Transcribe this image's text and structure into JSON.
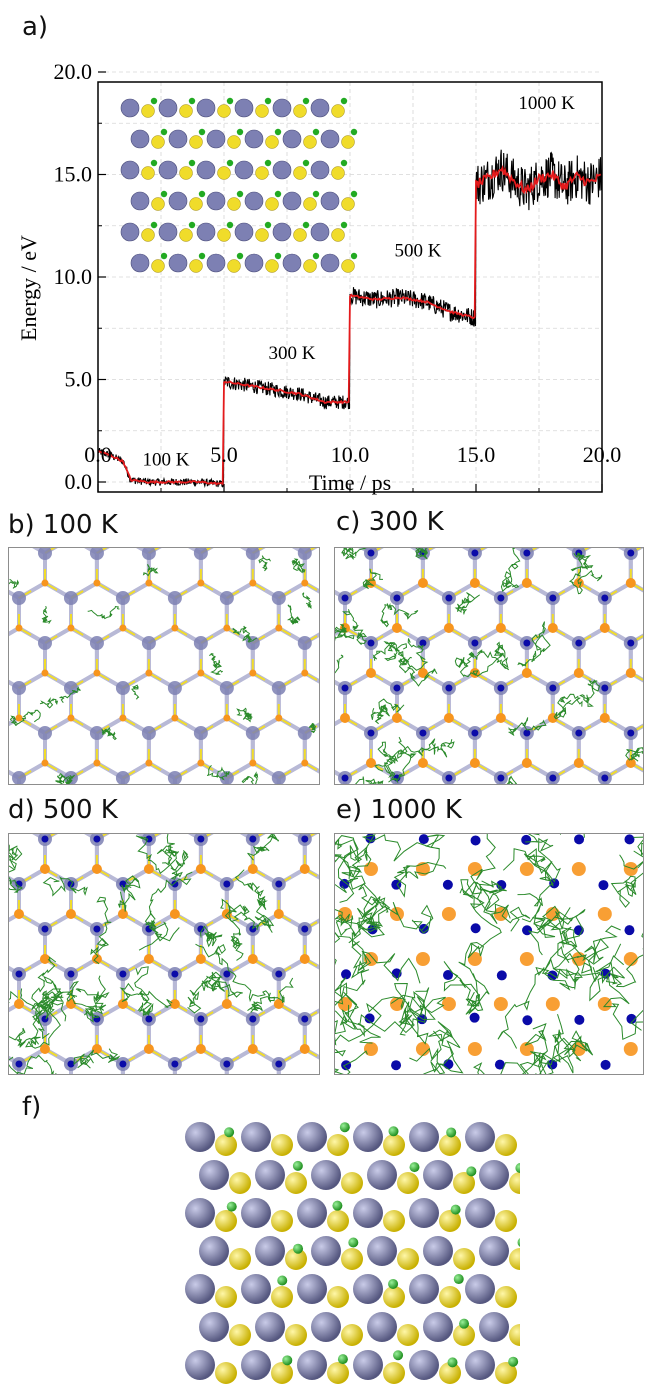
{
  "figure": {
    "panel_a_label": "a)",
    "panel_b_label": "b)  100 K",
    "panel_c_label": "c)  300 K",
    "panel_d_label": "d)  500 K",
    "panel_e_label": "e)  1000 K",
    "panel_f_label": "f)"
  },
  "colors": {
    "raw_line": "#000000",
    "smoothed_line": "#e41a1c",
    "lattice_atom": "#7d80b3",
    "ring_atom_yellow": "#f0dc2a",
    "hydrogen": "#22aa22",
    "trajectory": "#2a8a2a",
    "dark_blue_atom": "#0a0aa8",
    "orange_atom": "#f7951e"
  },
  "chart_data": {
    "type": "line",
    "title": "",
    "xlabel": "Time  /  ps",
    "ylabel": "Energy  /  eV",
    "xlim": [
      0,
      20
    ],
    "ylim": [
      0,
      20
    ],
    "x_ticks": [
      "0.0",
      "5.0",
      "10.0",
      "15.0",
      "20.0"
    ],
    "y_ticks": [
      "0.0",
      "5.0",
      "10.0",
      "15.0",
      "20.0"
    ],
    "grid": true,
    "series": [
      {
        "style": "raw",
        "x": [
          0,
          0.5,
          1.0,
          1.3,
          2,
          3,
          4,
          4.99,
          5.0,
          5.5,
          6,
          7,
          7.5,
          8,
          8.5,
          9,
          9.99,
          10.0,
          10.5,
          11,
          12,
          13,
          14,
          14.99,
          15.0,
          15.5,
          16,
          16.5,
          17,
          17.5,
          18,
          18.5,
          19,
          19.5,
          20
        ],
        "y": [
          1.5,
          1.3,
          1.0,
          0.1,
          0.0,
          0.0,
          0.0,
          -0.1,
          4.9,
          4.8,
          4.7,
          4.5,
          4.4,
          4.3,
          4.1,
          3.9,
          3.9,
          9.1,
          9.0,
          8.9,
          9.0,
          8.8,
          8.3,
          8.0,
          14.5,
          14.8,
          15.3,
          14.7,
          14.2,
          14.8,
          15.0,
          14.4,
          14.9,
          14.6,
          14.9
        ]
      },
      {
        "style": "smoothed",
        "x": [
          0,
          0.5,
          1.0,
          1.3,
          2,
          3,
          4,
          4.99,
          5.0,
          5.5,
          6,
          7,
          7.5,
          8,
          8.5,
          9,
          9.99,
          10.0,
          10.5,
          11,
          12,
          13,
          14,
          14.99,
          15.0,
          15.5,
          16,
          16.5,
          17,
          17.5,
          18,
          18.5,
          19,
          19.5,
          20
        ],
        "y": [
          1.5,
          1.3,
          1.0,
          0.1,
          0.0,
          0.0,
          0.0,
          -0.1,
          4.9,
          4.8,
          4.7,
          4.5,
          4.4,
          4.3,
          4.1,
          3.9,
          3.9,
          9.1,
          9.0,
          8.9,
          9.0,
          8.8,
          8.3,
          8.0,
          14.5,
          14.8,
          15.3,
          14.7,
          14.2,
          14.8,
          15.0,
          14.4,
          14.9,
          14.6,
          14.9
        ]
      }
    ],
    "annotations": [
      {
        "text": "100 K",
        "x": 2.7,
        "y": 0.8
      },
      {
        "text": "300 K",
        "x": 7.7,
        "y": 6.0
      },
      {
        "text": "500 K",
        "x": 12.7,
        "y": 11.0
      },
      {
        "text": "1000 K",
        "x": 17.8,
        "y": 18.2
      }
    ]
  }
}
